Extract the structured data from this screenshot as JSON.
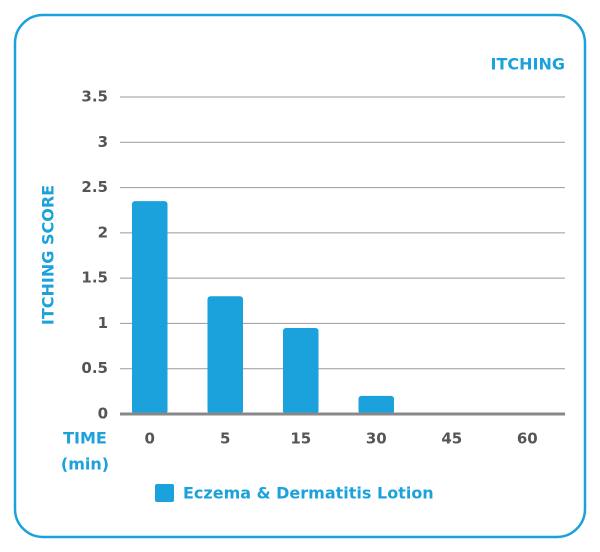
{
  "chart_data": {
    "type": "bar",
    "title": "ITCHING",
    "ylabel": "ITCHING SCORE",
    "xlabel": [
      "TIME",
      "(min)"
    ],
    "categories": [
      "0",
      "5",
      "15",
      "30",
      "45",
      "60"
    ],
    "series": [
      {
        "name": "Eczema & Dermatitis Lotion",
        "color": "#1ba1dc",
        "values": [
          2.35,
          1.3,
          0.95,
          0.2,
          0,
          0
        ]
      }
    ],
    "ylim": [
      0,
      3.5
    ],
    "yticks": [
      0,
      0.5,
      1,
      1.5,
      2,
      2.5,
      3,
      3.5
    ],
    "grid": true
  }
}
